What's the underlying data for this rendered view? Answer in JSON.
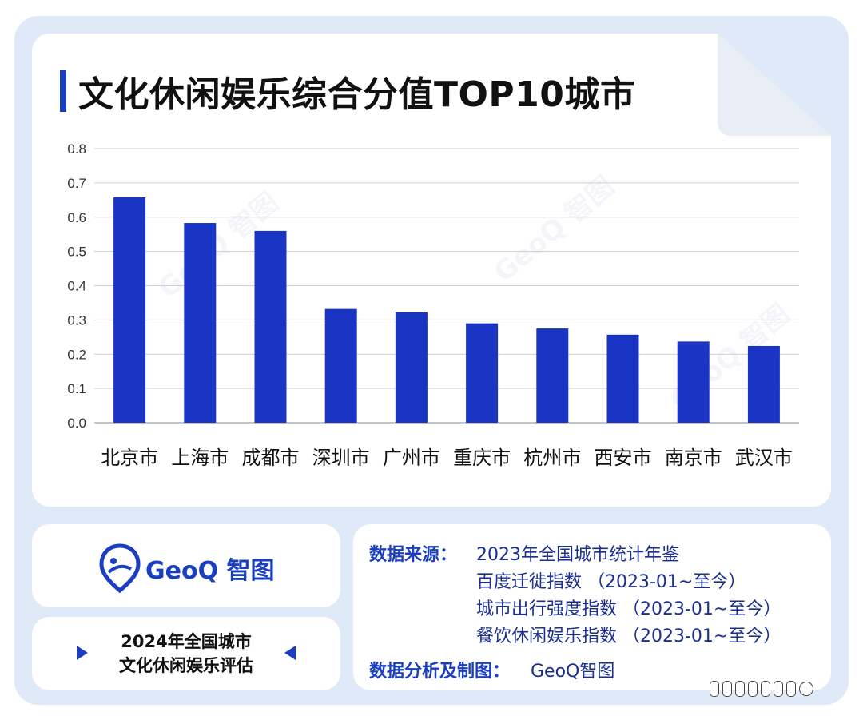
{
  "title": "文化休闲娱乐综合分值TOP10城市",
  "chart_data": {
    "type": "bar",
    "categories": [
      "北京市",
      "上海市",
      "成都市",
      "深圳市",
      "广州市",
      "重庆市",
      "杭州市",
      "西安市",
      "南京市",
      "武汉市"
    ],
    "values": [
      0.658,
      0.583,
      0.56,
      0.332,
      0.322,
      0.29,
      0.275,
      0.257,
      0.237,
      0.224
    ],
    "ylim": [
      0,
      0.8
    ],
    "yticks": [
      "0.0",
      "0.1",
      "0.2",
      "0.3",
      "0.4",
      "0.5",
      "0.6",
      "0.7",
      "0.8"
    ],
    "grid": true,
    "bar_color": "#1a35c4"
  },
  "brand": {
    "name": "GeoQ 智图",
    "color": "#1a3ec0"
  },
  "evaluation": {
    "line1": "2024年全国城市",
    "line2": "文化休闲娱乐评估"
  },
  "sources": {
    "label": "数据来源：",
    "items": [
      "2023年全国城市统计年鉴",
      "百度迁徙指数 （2023-01~至今）",
      "城市出行强度指数 （2023-01~至今）",
      "餐饮休闲娱乐指数 （2023-01~至今）"
    ],
    "analysis_label": "数据分析及制图：",
    "analysis_value": "GeoQ智图"
  }
}
